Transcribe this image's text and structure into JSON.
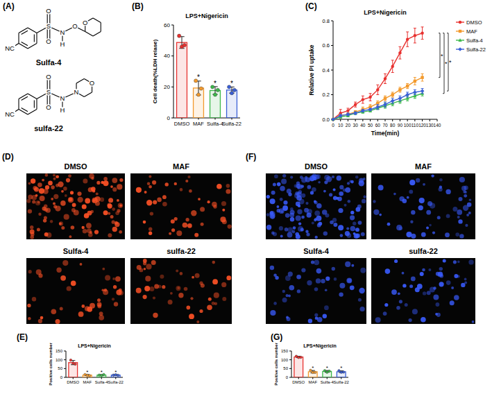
{
  "panel_labels": [
    "(A)",
    "(B)",
    "(C)",
    "(D)",
    "(E)",
    "(F)",
    "(G)"
  ],
  "structures": [
    {
      "name": "Sulfa-4",
      "atom_labels": [
        "NC",
        "S",
        "O",
        "O",
        "N",
        "H",
        "O",
        "O"
      ]
    },
    {
      "name": "sulfa-22",
      "atom_labels": [
        "NC",
        "S",
        "O",
        "O",
        "N",
        "H",
        "N",
        "O"
      ]
    }
  ],
  "images": [
    {
      "labels": [
        "DMSO",
        "MAF",
        "Sulfa-4",
        "sulfa-22"
      ],
      "color": "#ff5226"
    },
    {
      "labels": [
        "DMSO",
        "MAF",
        "Sulfa-4",
        "sulfa-22"
      ],
      "color": "#3a5cff"
    }
  ],
  "chart_data": [
    {
      "type": "bar",
      "title": "LPS+Nigericin",
      "y_label": "Cell death(%LDH relase)",
      "categories": [
        "DMSO",
        "MAF",
        "Sulfa-4",
        "Sulfa-22"
      ],
      "values": [
        48.7,
        19.3,
        17.7,
        18
      ],
      "errors": [
        3.8,
        4.5,
        2.5,
        2
      ],
      "points": [
        [
          53,
          46,
          47
        ],
        [
          24,
          15,
          19
        ],
        [
          20,
          15,
          18
        ],
        [
          20,
          16,
          18
        ]
      ],
      "colors": [
        "#e8312f",
        "#f39a2d",
        "#3cb94a",
        "#3a5fd6"
      ],
      "significance": [
        null,
        "*",
        "*",
        "*"
      ],
      "ylim": [
        0,
        60
      ],
      "yticks": [
        0,
        20,
        40,
        60
      ]
    },
    {
      "type": "line",
      "title": "LPS+Nigericin",
      "x_label": "Time(min)",
      "y_label": "Relative PI uptake",
      "x": [
        0,
        10,
        20,
        30,
        40,
        50,
        60,
        70,
        80,
        90,
        100,
        110,
        120
      ],
      "series": [
        {
          "name": "DMSO",
          "color": "#e8312f",
          "marker": "circle",
          "values": [
            0,
            0.05,
            0.07,
            0.12,
            0.16,
            0.18,
            0.24,
            0.33,
            0.43,
            0.54,
            0.65,
            0.68,
            0.7
          ],
          "errors": [
            0,
            0.03,
            0.02,
            0.02,
            0.03,
            0.03,
            0.04,
            0.04,
            0.05,
            0.05,
            0.06,
            0.06,
            0.05
          ]
        },
        {
          "name": "MAF",
          "color": "#f39a2d",
          "marker": "square",
          "values": [
            0,
            0.03,
            0.04,
            0.06,
            0.08,
            0.1,
            0.13,
            0.17,
            0.2,
            0.24,
            0.27,
            0.31,
            0.34
          ],
          "errors": [
            0,
            0.01,
            0.01,
            0.01,
            0.02,
            0.02,
            0.02,
            0.02,
            0.02,
            0.02,
            0.02,
            0.03,
            0.03
          ]
        },
        {
          "name": "Sulfa-4",
          "color": "#3cb94a",
          "marker": "triangle",
          "values": [
            0,
            0.02,
            0.03,
            0.05,
            0.06,
            0.07,
            0.09,
            0.11,
            0.13,
            0.15,
            0.17,
            0.19,
            0.21
          ],
          "errors": [
            0,
            0.01,
            0.01,
            0.01,
            0.01,
            0.01,
            0.01,
            0.02,
            0.02,
            0.02,
            0.02,
            0.02,
            0.02
          ]
        },
        {
          "name": "Sulfa-22",
          "color": "#3a5fd6",
          "marker": "diamond",
          "values": [
            0,
            0.03,
            0.04,
            0.05,
            0.07,
            0.08,
            0.1,
            0.12,
            0.15,
            0.17,
            0.2,
            0.22,
            0.23
          ],
          "errors": [
            0,
            0.01,
            0.01,
            0.01,
            0.01,
            0.01,
            0.02,
            0.02,
            0.02,
            0.02,
            0.02,
            0.02,
            0.02
          ]
        }
      ],
      "significance": [
        null,
        "*",
        "*",
        "*"
      ],
      "legend": "right",
      "xlim": [
        0,
        140
      ],
      "xticks": [
        0,
        10,
        20,
        30,
        40,
        50,
        60,
        70,
        80,
        90,
        100,
        110,
        120,
        130,
        140
      ],
      "ylim": [
        0,
        0.8
      ],
      "yticks": [
        {
          "value": 0,
          "label": "0.0"
        },
        0.2,
        0.4,
        0.6,
        0.8
      ]
    },
    {
      "type": "bar",
      "title": "LPS+Nigericin",
      "y_label": "Positive cells number",
      "categories": [
        "DMSO",
        "MAF",
        "Sulfa-4",
        "Sulfa-22"
      ],
      "values": [
        84,
        13,
        13,
        13
      ],
      "errors": [
        12,
        3,
        2.5,
        1.5
      ],
      "points": [
        [
          98,
          80,
          75
        ],
        [
          16,
          12,
          10
        ],
        [
          13,
          11,
          16
        ],
        [
          13,
          15,
          12
        ]
      ],
      "colors": [
        "#e8312f",
        "#f39a2d",
        "#3cb94a",
        "#3a5fd6"
      ],
      "significance": [
        null,
        "*",
        "*",
        "*"
      ],
      "ylim": [
        0,
        150
      ],
      "yticks": [
        0,
        50,
        100,
        150
      ]
    },
    {
      "type": "bar",
      "title": "LPS+Nigericin",
      "y_label": "Positive cells number",
      "categories": [
        "DMSO",
        "MAF",
        "Sulfa-4",
        "Sulfa-22"
      ],
      "values": [
        116,
        32,
        34,
        32
      ],
      "errors": [
        4,
        7,
        5,
        5
      ],
      "points": [
        [
          120,
          113,
          114
        ],
        [
          40,
          28,
          28
        ],
        [
          38,
          29,
          35
        ],
        [
          38,
          29,
          30
        ]
      ],
      "colors": [
        "#e8312f",
        "#f39a2d",
        "#3cb94a",
        "#3a5fd6"
      ],
      "significance": [
        null,
        "*",
        "*",
        "*"
      ],
      "ylim": [
        0,
        150
      ],
      "yticks": [
        0,
        50,
        100,
        150
      ]
    }
  ]
}
